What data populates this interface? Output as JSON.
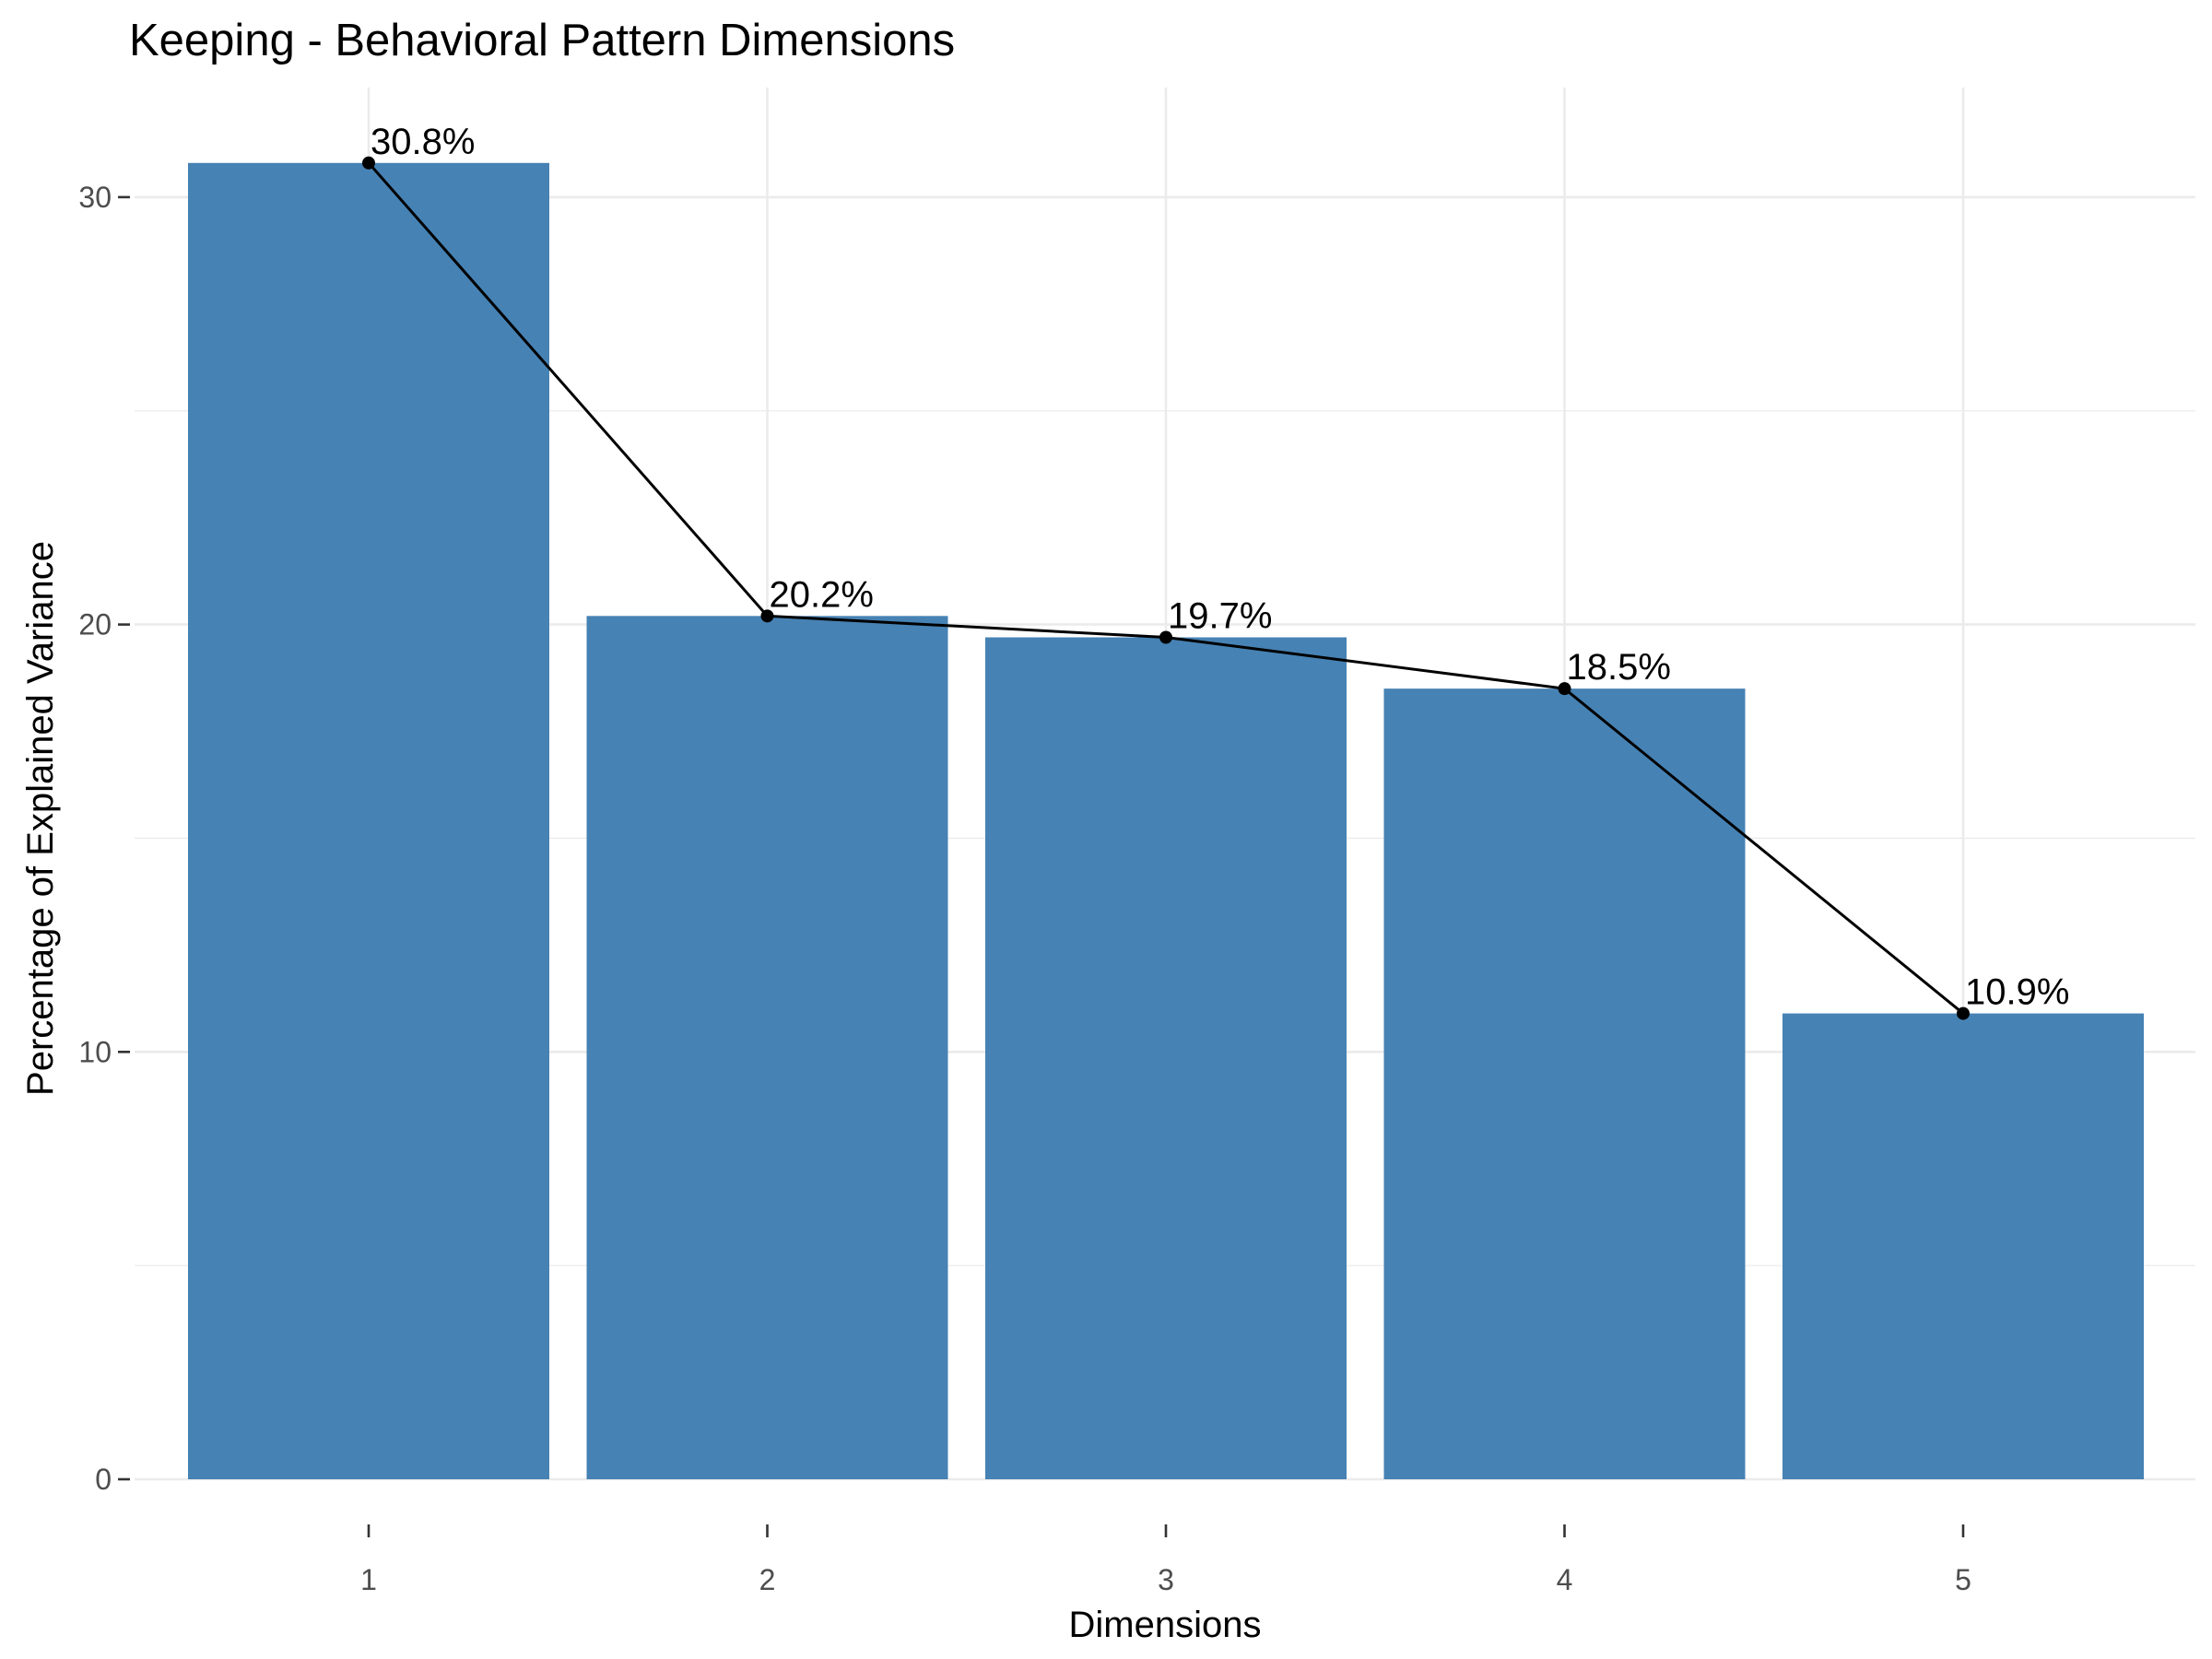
{
  "chart_data": {
    "type": "bar",
    "title": "Keeping - Behavioral Pattern Dimensions",
    "xlabel": "Dimensions",
    "ylabel": "Percentage of Explained Variance",
    "categories": [
      "1",
      "2",
      "3",
      "4",
      "5"
    ],
    "values": [
      30.8,
      20.2,
      19.7,
      18.5,
      10.9
    ],
    "data_labels": [
      "30.8%",
      "20.2%",
      "19.7%",
      "18.5%",
      "10.9%"
    ],
    "overlay": "line-with-points",
    "ylim": [
      0,
      31.4
    ],
    "yticks": [
      0,
      10,
      20,
      30
    ],
    "ytick_labels": [
      "0",
      "10",
      "20",
      "30"
    ],
    "grid": true,
    "legend": "none",
    "colors": {
      "bar": "#4682b4",
      "line": "#000000",
      "grid": "#ebebeb",
      "tick_text": "#4d4d4d",
      "text": "#000000"
    }
  }
}
